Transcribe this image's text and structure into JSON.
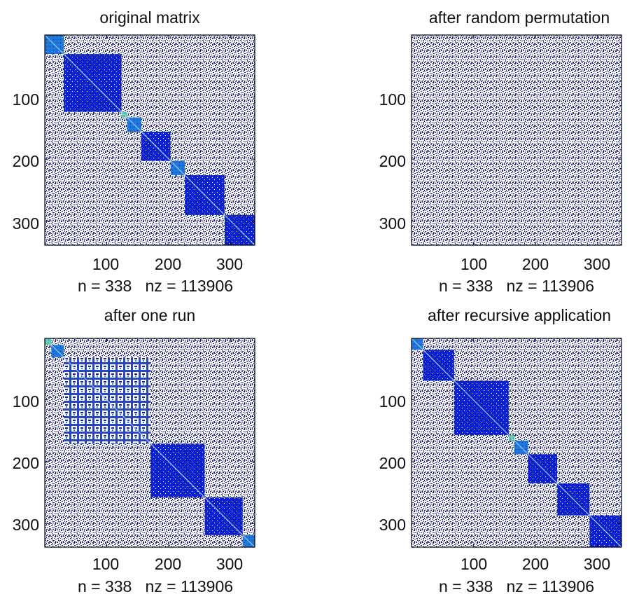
{
  "chart_data": [
    {
      "type": "heatmap",
      "title": "original matrix",
      "xlabel": "n = 338   nz = 113906",
      "n": 338,
      "nz": 113906,
      "xlim": [
        1,
        338
      ],
      "ylim": [
        338,
        1
      ],
      "x_ticks": [
        100,
        200,
        300
      ],
      "y_ticks": [
        100,
        200,
        300
      ],
      "blocks": [
        {
          "start": 1,
          "end": 30,
          "tone": "teal"
        },
        {
          "start": 31,
          "end": 123,
          "tone": "dense"
        },
        {
          "start": 124,
          "end": 132,
          "tone": "green"
        },
        {
          "start": 133,
          "end": 155,
          "tone": "teal"
        },
        {
          "start": 156,
          "end": 202,
          "tone": "dense"
        },
        {
          "start": 203,
          "end": 225,
          "tone": "teal"
        },
        {
          "start": 226,
          "end": 289,
          "tone": "dense"
        },
        {
          "start": 290,
          "end": 338,
          "tone": "dense"
        }
      ]
    },
    {
      "type": "heatmap",
      "title": "after random permutation",
      "xlabel": "n = 338   nz = 113906",
      "n": 338,
      "nz": 113906,
      "xlim": [
        1,
        338
      ],
      "ylim": [
        338,
        1
      ],
      "x_ticks": [
        100,
        200,
        300
      ],
      "y_ticks": [
        100,
        200,
        300
      ],
      "blocks": []
    },
    {
      "type": "heatmap",
      "title": "after one run",
      "xlabel": "n = 338   nz = 113906",
      "n": 338,
      "nz": 113906,
      "xlim": [
        1,
        338
      ],
      "ylim": [
        338,
        1
      ],
      "x_ticks": [
        100,
        200,
        300
      ],
      "y_ticks": [
        100,
        200,
        300
      ],
      "blocks": [
        {
          "start": 1,
          "end": 10,
          "tone": "green"
        },
        {
          "start": 11,
          "end": 30,
          "tone": "teal"
        },
        {
          "start": 31,
          "end": 170,
          "tone": "mixed"
        },
        {
          "start": 171,
          "end": 257,
          "tone": "dense"
        },
        {
          "start": 258,
          "end": 318,
          "tone": "dense"
        },
        {
          "start": 319,
          "end": 338,
          "tone": "teal"
        }
      ]
    },
    {
      "type": "heatmap",
      "title": "after recursive application",
      "xlabel": "n = 338   nz = 113906",
      "n": 338,
      "nz": 113906,
      "xlim": [
        1,
        338
      ],
      "ylim": [
        338,
        1
      ],
      "x_ticks": [
        100,
        200,
        300
      ],
      "y_ticks": [
        100,
        200,
        300
      ],
      "blocks": [
        {
          "start": 1,
          "end": 18,
          "tone": "teal"
        },
        {
          "start": 19,
          "end": 68,
          "tone": "dense"
        },
        {
          "start": 69,
          "end": 156,
          "tone": "dense"
        },
        {
          "start": 157,
          "end": 165,
          "tone": "green"
        },
        {
          "start": 166,
          "end": 187,
          "tone": "teal"
        },
        {
          "start": 188,
          "end": 234,
          "tone": "dense"
        },
        {
          "start": 235,
          "end": 286,
          "tone": "dense"
        },
        {
          "start": 287,
          "end": 338,
          "tone": "dense"
        }
      ]
    }
  ],
  "colors": {
    "background": "#ffffff",
    "sparse_dots": "#1b1d88",
    "dense_block": "#0a23ce",
    "teal_block": "#1e76d6",
    "green_cell": "#4fd3a0",
    "mixed_block": "#2a45c0",
    "diagonal": "#9ec4ee",
    "axis": "#000000"
  }
}
